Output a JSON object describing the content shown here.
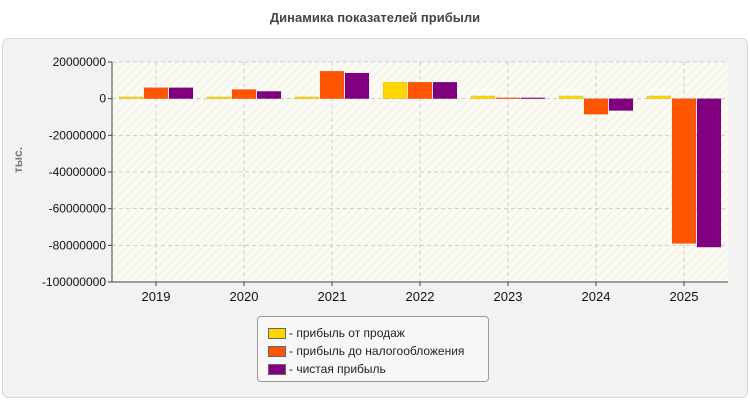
{
  "chart_data": {
    "type": "bar",
    "title": "Динамика показателей прибыли",
    "ylabel": "тыс.",
    "xlabel": "",
    "categories": [
      "2019",
      "2020",
      "2021",
      "2022",
      "2023",
      "2024",
      "2025"
    ],
    "ylim": [
      -100000000,
      20000000
    ],
    "yticks": [
      20000000,
      0,
      -20000000,
      -40000000,
      -60000000,
      -80000000,
      -100000000
    ],
    "ytick_labels": [
      "20000000",
      "0",
      "-20000000",
      "-40000000",
      "-60000000",
      "-80000000",
      "-100000000"
    ],
    "grid": true,
    "legend_position": "bottom-center",
    "series": [
      {
        "name": "- прибыль от продаж",
        "color": "#FFD700",
        "values": [
          1000000,
          1000000,
          1000000,
          9000000,
          1500000,
          1500000,
          1500000
        ]
      },
      {
        "name": "- прибыль до налогообложения",
        "color": "#FF5500",
        "values": [
          6000000,
          5000000,
          15000000,
          9000000,
          500000,
          -8500000,
          -79000000
        ]
      },
      {
        "name": "- чистая прибыль",
        "color": "#800080",
        "values": [
          6000000,
          4000000,
          14000000,
          9000000,
          500000,
          -6500000,
          -81000000
        ]
      }
    ]
  }
}
